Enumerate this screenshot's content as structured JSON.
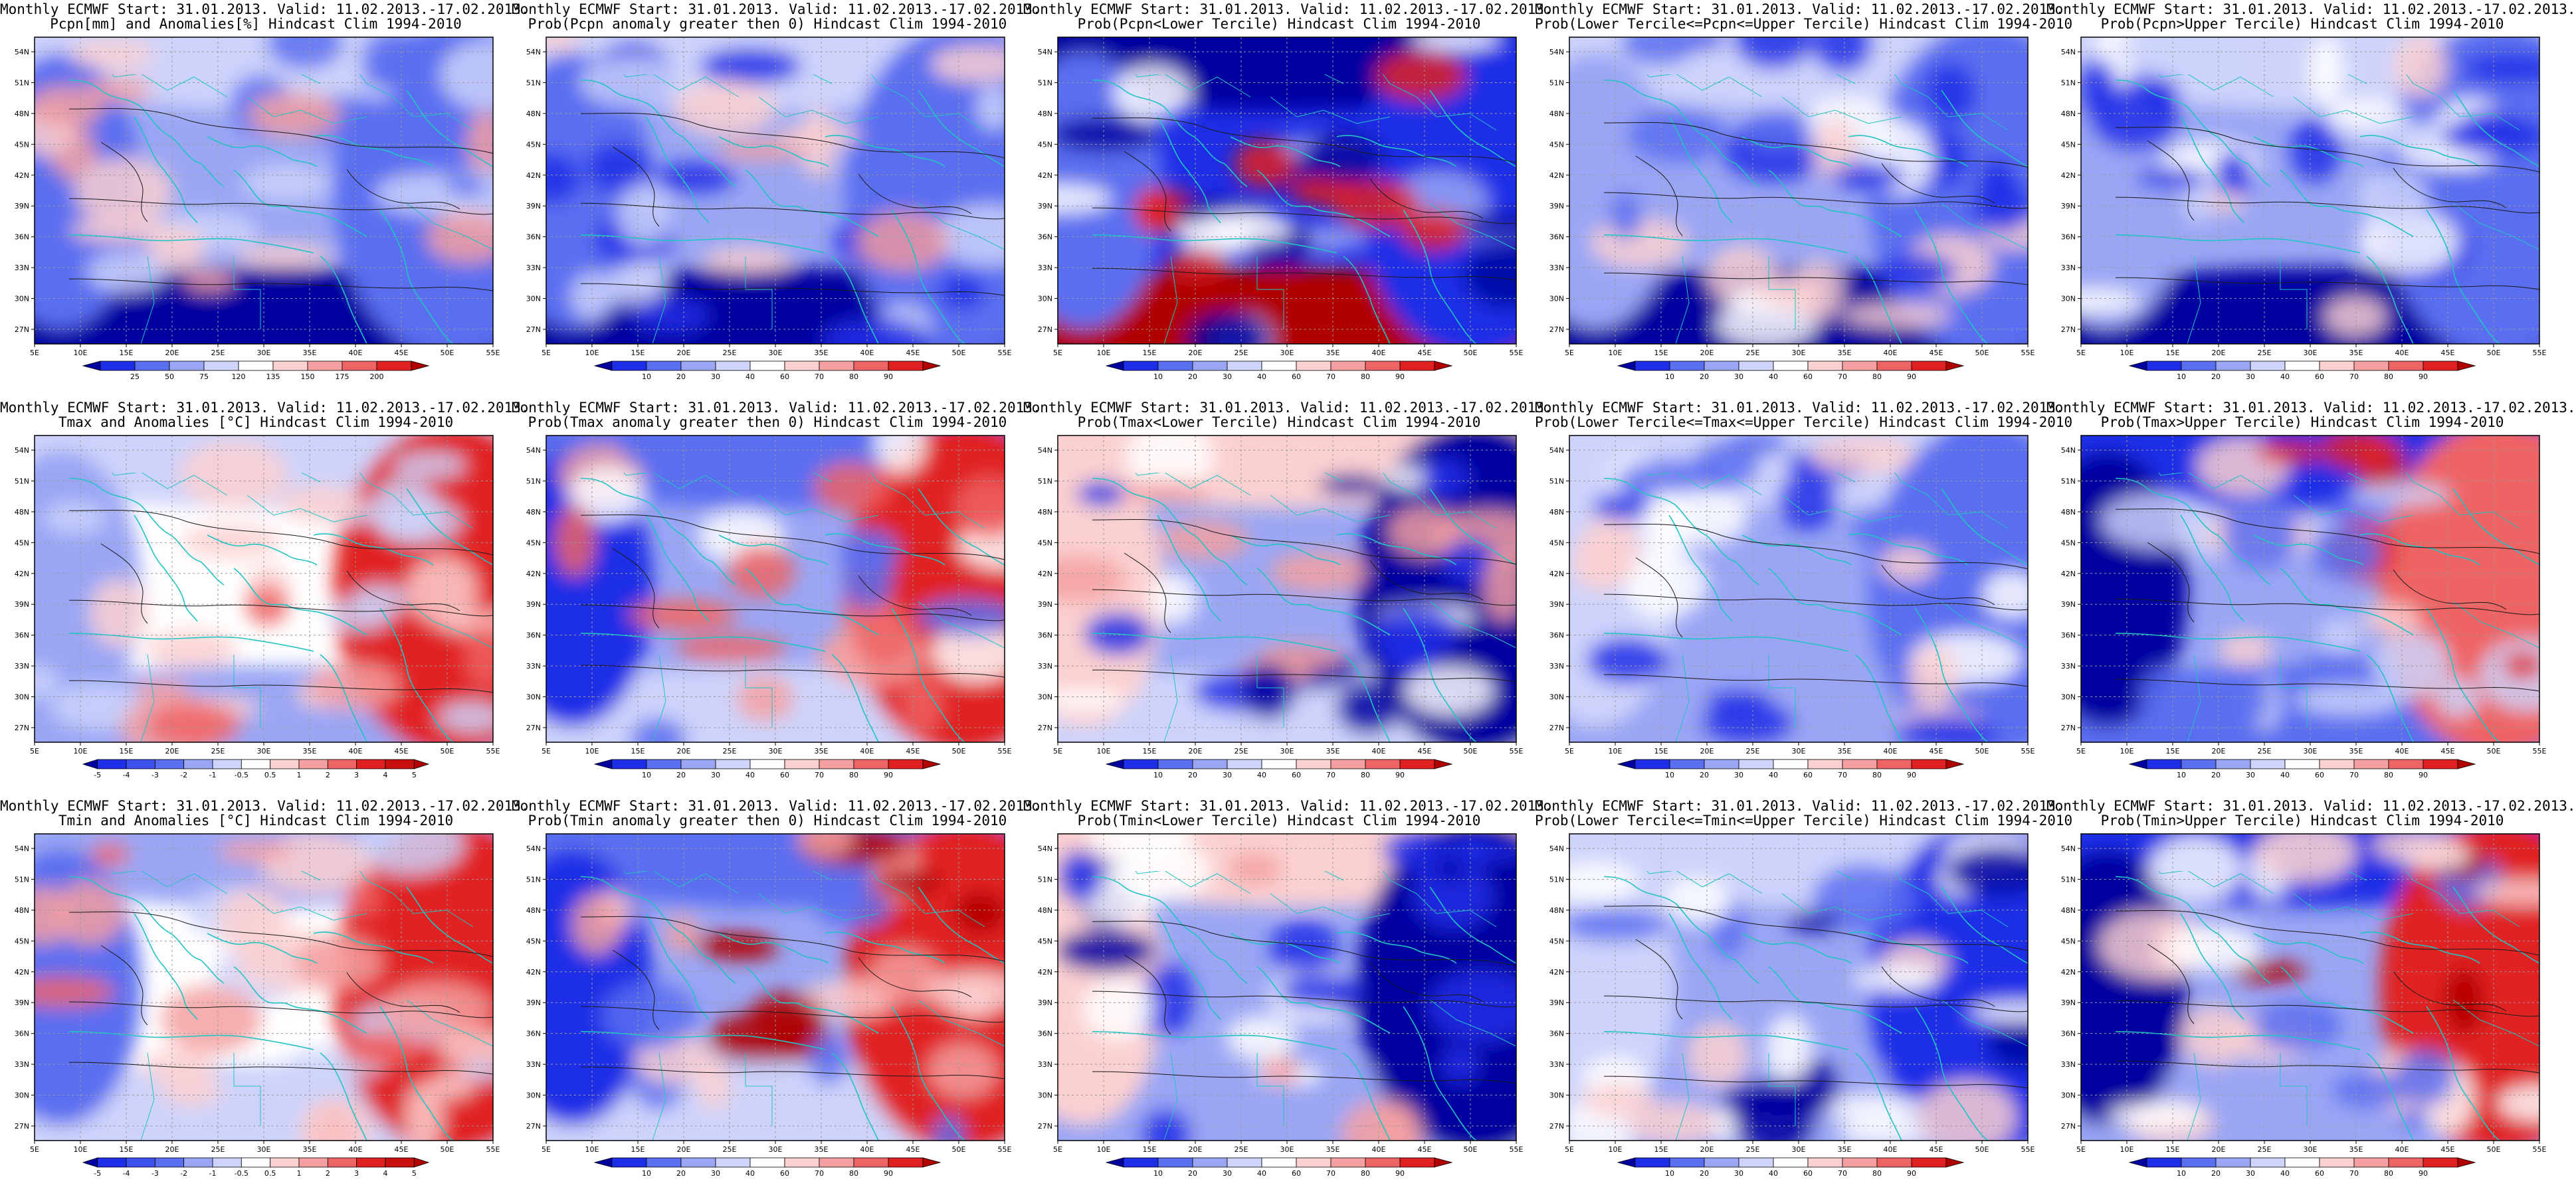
{
  "lat_ticks": [
    "54N",
    "51N",
    "48N",
    "45N",
    "42N",
    "39N",
    "36N",
    "33N",
    "30N",
    "27N"
  ],
  "lon_ticks": [
    "5E",
    "10E",
    "15E",
    "20E",
    "25E",
    "30E",
    "35E",
    "40E",
    "45E",
    "50E",
    "55E"
  ],
  "colorbars": {
    "precip_anom": [
      "25",
      "50",
      "75",
      "120",
      "135",
      "150",
      "175",
      "200"
    ],
    "temp_anom": [
      "-5",
      "-4",
      "-3",
      "-2",
      "-1",
      "-0.5",
      "0.5",
      "1",
      "2",
      "3",
      "4",
      "5"
    ],
    "prob": [
      "10",
      "20",
      "30",
      "40",
      "60",
      "70",
      "80",
      "90"
    ]
  },
  "colors": {
    "coastline": "#22c3c3",
    "contour": "#1a1a1a",
    "neutral": "#ffffff",
    "blue_scale": [
      "#0000a0",
      "#1e2ee6",
      "#5a6ef0",
      "#9aa6f4",
      "#cdd3fa"
    ],
    "red_scale": [
      "#fbd0d0",
      "#f4a0a0",
      "#ee6464",
      "#e02020",
      "#b00000"
    ]
  },
  "panels": [
    {
      "id": "p1",
      "title1": "Monthly ECMWF Start: 31.01.2013. Valid: 11.02.2013.-17.02.2013.",
      "title2": "Pcpn[mm] and Anomalies[%] Hindcast Clim 1994-2010",
      "colorbar": "precip_anom",
      "field": "precip_anom"
    },
    {
      "id": "p2",
      "title1": "Monthly ECMWF Start: 31.01.2013. Valid: 11.02.2013.-17.02.2013.",
      "title2": "Prob(Pcpn anomaly greater then 0) Hindcast Clim 1994-2010",
      "colorbar": "prob",
      "field": "precip_prob_pos"
    },
    {
      "id": "p3",
      "title1": "Monthly ECMWF Start: 31.01.2013. Valid: 11.02.2013.-17.02.2013.",
      "title2": "Prob(Pcpn<Lower Tercile) Hindcast Clim 1994-2010",
      "colorbar": "prob",
      "field": "precip_prob_lower"
    },
    {
      "id": "p4",
      "title1": "Monthly ECMWF Start: 31.01.2013. Valid: 11.02.2013.-17.02.2013.",
      "title2": "Prob(Lower Tercile<=Pcpn<=Upper Tercile) Hindcast Clim 1994-2010",
      "colorbar": "prob",
      "field": "precip_prob_mid"
    },
    {
      "id": "p5",
      "title1": "Monthly ECMWF Start: 31.01.2013. Valid: 11.02.2013.-17.02.2013.",
      "title2": "Prob(Pcpn>Upper Tercile) Hindcast Clim 1994-2010",
      "colorbar": "prob",
      "field": "precip_prob_upper"
    },
    {
      "id": "p6",
      "title1": "Monthly ECMWF Start: 31.01.2013. Valid: 11.02.2013.-17.02.2013.",
      "title2": "Tmax and Anomalies [°C] Hindcast Clim 1994-2010",
      "colorbar": "temp_anom",
      "field": "tmax_anom"
    },
    {
      "id": "p7",
      "title1": "Monthly ECMWF Start: 31.01.2013. Valid: 11.02.2013.-17.02.2013.",
      "title2": "Prob(Tmax anomaly greater then 0) Hindcast Clim 1994-2010",
      "colorbar": "prob",
      "field": "tmax_prob_pos"
    },
    {
      "id": "p8",
      "title1": "Monthly ECMWF Start: 31.01.2013. Valid: 11.02.2013.-17.02.2013.",
      "title2": "Prob(Tmax<Lower Tercile) Hindcast Clim 1994-2010",
      "colorbar": "prob",
      "field": "tmax_prob_lower"
    },
    {
      "id": "p9",
      "title1": "Monthly ECMWF Start: 31.01.2013. Valid: 11.02.2013.-17.02.2013.",
      "title2": "Prob(Lower Tercile<=Tmax<=Upper Tercile) Hindcast Clim 1994-2010",
      "colorbar": "prob",
      "field": "tmax_prob_mid"
    },
    {
      "id": "p10",
      "title1": "Monthly ECMWF Start: 31.01.2013. Valid: 11.02.2013.-17.02.2013.",
      "title2": "Prob(Tmax>Upper Tercile) Hindcast Clim 1994-2010",
      "colorbar": "prob",
      "field": "tmax_prob_upper"
    },
    {
      "id": "p11",
      "title1": "Monthly ECMWF Start: 31.01.2013. Valid: 11.02.2013.-17.02.2013.",
      "title2": "Tmin and Anomalies [°C] Hindcast Clim 1994-2010",
      "colorbar": "temp_anom",
      "field": "tmin_anom"
    },
    {
      "id": "p12",
      "title1": "Monthly ECMWF Start: 31.01.2013. Valid: 11.02.2013.-17.02.2013.",
      "title2": "Prob(Tmin anomaly greater then 0) Hindcast Clim 1994-2010",
      "colorbar": "prob",
      "field": "tmin_prob_pos"
    },
    {
      "id": "p13",
      "title1": "Monthly ECMWF Start: 31.01.2013. Valid: 11.02.2013.-17.02.2013.",
      "title2": "Prob(Tmin<Lower Tercile) Hindcast Clim 1994-2010",
      "colorbar": "prob",
      "field": "tmin_prob_lower"
    },
    {
      "id": "p14",
      "title1": "Monthly ECMWF Start: 31.01.2013. Valid: 11.02.2013.-17.02.2013.",
      "title2": "Prob(Lower Tercile<=Tmin<=Upper Tercile) Hindcast Clim 1994-2010",
      "colorbar": "prob",
      "field": "tmin_prob_mid"
    },
    {
      "id": "p15",
      "title1": "Monthly ECMWF Start: 31.01.2013. Valid: 11.02.2013.-17.02.2013.",
      "title2": "Prob(Tmin>Upper Tercile) Hindcast Clim 1994-2010",
      "colorbar": "prob",
      "field": "tmin_prob_upper"
    }
  ]
}
